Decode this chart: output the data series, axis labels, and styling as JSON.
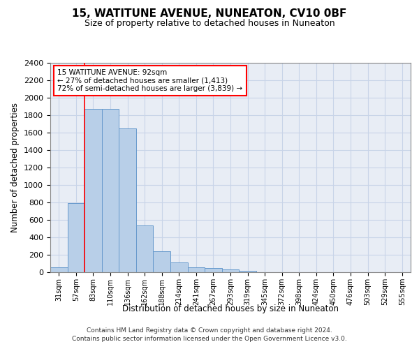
{
  "title": "15, WATITUNE AVENUE, NUNEATON, CV10 0BF",
  "subtitle": "Size of property relative to detached houses in Nuneaton",
  "xlabel": "Distribution of detached houses by size in Nuneaton",
  "ylabel": "Number of detached properties",
  "categories": [
    "31sqm",
    "57sqm",
    "83sqm",
    "110sqm",
    "136sqm",
    "162sqm",
    "188sqm",
    "214sqm",
    "241sqm",
    "267sqm",
    "293sqm",
    "319sqm",
    "345sqm",
    "372sqm",
    "398sqm",
    "424sqm",
    "450sqm",
    "476sqm",
    "503sqm",
    "529sqm",
    "555sqm"
  ],
  "values": [
    60,
    790,
    1870,
    1870,
    1650,
    535,
    240,
    110,
    60,
    50,
    30,
    18,
    0,
    0,
    0,
    0,
    0,
    0,
    0,
    0,
    0
  ],
  "bar_color": "#b8cfe8",
  "bar_edge_color": "#6699cc",
  "property_line_index": 2,
  "annotation_line1": "15 WATITUNE AVENUE: 92sqm",
  "annotation_line2": "← 27% of detached houses are smaller (1,413)",
  "annotation_line3": "72% of semi-detached houses are larger (3,839) →",
  "ylim": [
    0,
    2400
  ],
  "yticks": [
    0,
    200,
    400,
    600,
    800,
    1000,
    1200,
    1400,
    1600,
    1800,
    2000,
    2200,
    2400
  ],
  "grid_color": "#c8d4e8",
  "background_color": "#e8edf5",
  "footer_line1": "Contains HM Land Registry data © Crown copyright and database right 2024.",
  "footer_line2": "Contains public sector information licensed under the Open Government Licence v3.0."
}
